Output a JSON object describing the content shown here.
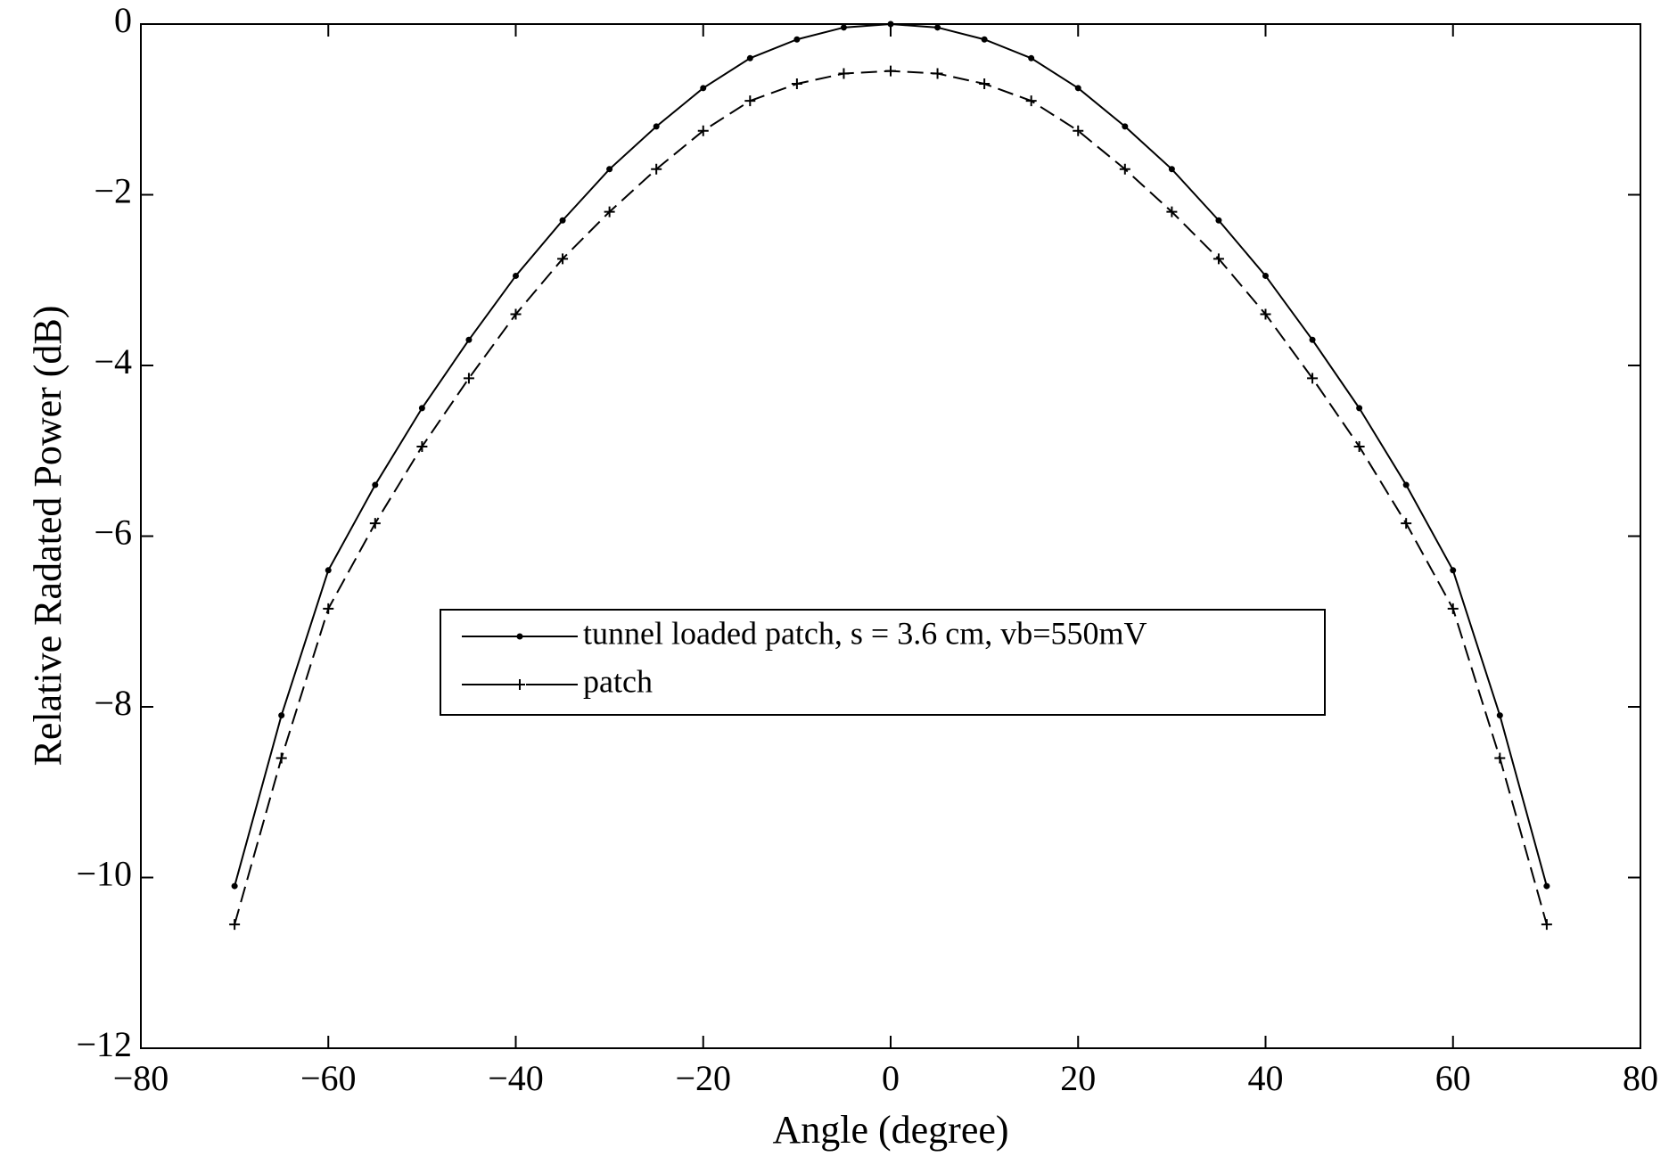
{
  "chart_data": {
    "type": "line",
    "xlabel": "Angle (degree)",
    "ylabel": "Relative Radated Power (dB)",
    "x": [
      -70,
      -65,
      -60,
      -55,
      -50,
      -45,
      -40,
      -35,
      -30,
      -25,
      -20,
      -15,
      -10,
      -5,
      0,
      5,
      10,
      15,
      20,
      25,
      30,
      35,
      40,
      45,
      50,
      55,
      60,
      65,
      70
    ],
    "series": [
      {
        "name": "tunnel loaded patch, s = 3.6 cm, vb=550mV",
        "color": "#000000",
        "marker": "dot",
        "dash": "solid",
        "values": [
          -10.1,
          -8.1,
          -6.4,
          -5.4,
          -4.5,
          -3.7,
          -2.95,
          -2.3,
          -1.7,
          -1.2,
          -0.75,
          -0.4,
          -0.18,
          -0.04,
          0,
          -0.04,
          -0.18,
          -0.4,
          -0.75,
          -1.2,
          -1.7,
          -2.3,
          -2.95,
          -3.7,
          -4.5,
          -5.4,
          -6.4,
          -8.1,
          -10.1
        ]
      },
      {
        "name": "patch",
        "color": "#000000",
        "marker": "plus",
        "dash": "dashed",
        "values": [
          -10.55,
          -8.6,
          -6.85,
          -5.85,
          -4.95,
          -4.15,
          -3.4,
          -2.75,
          -2.2,
          -1.7,
          -1.25,
          -0.9,
          -0.7,
          -0.58,
          -0.55,
          -0.58,
          -0.7,
          -0.9,
          -1.25,
          -1.7,
          -2.2,
          -2.75,
          -3.4,
          -4.15,
          -4.95,
          -5.85,
          -6.85,
          -8.6,
          -10.55
        ]
      }
    ],
    "xlim": [
      -80,
      80
    ],
    "xticks": [
      {
        "value": -80,
        "label": "−80"
      },
      {
        "value": -60,
        "label": "−60"
      },
      {
        "value": -40,
        "label": "−40"
      },
      {
        "value": -20,
        "label": "−20"
      },
      0,
      20,
      40,
      60,
      80
    ],
    "ylim": [
      -12,
      0
    ],
    "yticks": [
      {
        "value": -12,
        "label": "−12"
      },
      {
        "value": -10,
        "label": "−10"
      },
      {
        "value": -8,
        "label": "−8"
      },
      {
        "value": -6,
        "label": "−6"
      },
      {
        "value": -4,
        "label": "−4"
      },
      {
        "value": -2,
        "label": "−2"
      },
      0
    ],
    "grid": false,
    "legend": "center"
  }
}
